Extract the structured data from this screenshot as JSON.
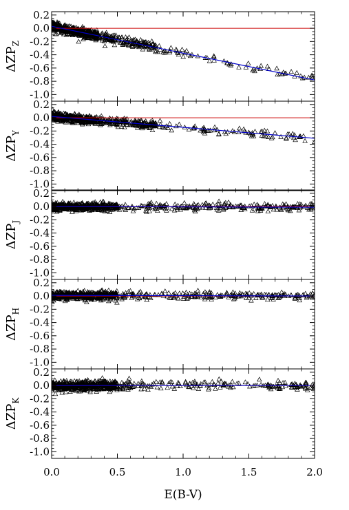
{
  "chart_data": [
    {
      "type": "scatter",
      "ylabel_main": "ΔZP",
      "ylabel_sub": "Z",
      "ylim": [
        -1.1,
        0.25
      ],
      "yticks": [
        "0.2",
        "0.0",
        "-0.2",
        "-0.4",
        "-0.6",
        "-0.8",
        "-1.0"
      ],
      "yticks_values": [
        0.2,
        0.0,
        -0.2,
        -0.4,
        -0.6,
        -0.8,
        -1.0
      ],
      "reference_line": {
        "y": 0.0,
        "color": "#cc0000"
      },
      "fit_line": {
        "x": [
          0.0,
          2.0
        ],
        "y": [
          0.03,
          -0.78
        ],
        "color": "#0000cc"
      },
      "scatter": {
        "slope": -0.405,
        "intercept": 0.03,
        "scatter": 0.035,
        "marker": "triangle-open"
      }
    },
    {
      "type": "scatter",
      "ylabel_main": "ΔZP",
      "ylabel_sub": "Y",
      "ylim": [
        -1.1,
        0.25
      ],
      "yticks": [
        "0.2",
        "0.0",
        "-0.2",
        "-0.4",
        "-0.6",
        "-0.8",
        "-1.0"
      ],
      "yticks_values": [
        0.2,
        0.0,
        -0.2,
        -0.4,
        -0.6,
        -0.8,
        -1.0
      ],
      "reference_line": {
        "y": 0.0,
        "color": "#cc0000"
      },
      "fit_line": {
        "x": [
          0.0,
          2.0
        ],
        "y": [
          0.02,
          -0.31
        ],
        "color": "#0000cc"
      },
      "scatter": {
        "slope": -0.165,
        "intercept": 0.02,
        "scatter": 0.03,
        "marker": "triangle-open"
      }
    },
    {
      "type": "scatter",
      "ylabel_main": "ΔZP",
      "ylabel_sub": "J",
      "ylim": [
        -1.1,
        0.25
      ],
      "yticks": [
        "0.2",
        "0.0",
        "-0.2",
        "-0.4",
        "-0.6",
        "-0.8",
        "-1.0"
      ],
      "yticks_values": [
        0.2,
        0.0,
        -0.2,
        -0.4,
        -0.6,
        -0.8,
        -1.0
      ],
      "reference_line": {
        "y": 0.0,
        "color": "#cc0000"
      },
      "fit_line": {
        "x": [
          0.0,
          2.0
        ],
        "y": [
          0.0,
          -0.01
        ],
        "color": "#0000cc"
      },
      "scatter": {
        "slope": -0.005,
        "intercept": 0.0,
        "scatter": 0.03,
        "marker": "triangle-open"
      }
    },
    {
      "type": "scatter",
      "ylabel_main": "ΔZP",
      "ylabel_sub": "H",
      "ylim": [
        -1.1,
        0.25
      ],
      "yticks": [
        "0.2",
        "0.0",
        "-0.2",
        "-0.4",
        "-0.6",
        "-0.8",
        "-1.0"
      ],
      "yticks_values": [
        0.2,
        0.0,
        -0.2,
        -0.4,
        -0.6,
        -0.8,
        -1.0
      ],
      "reference_line": {
        "y": 0.0,
        "color": "#cc0000"
      },
      "fit_line": {
        "x": [
          0.0,
          2.0
        ],
        "y": [
          0.01,
          0.0
        ],
        "color": "#0000cc"
      },
      "scatter": {
        "slope": -0.005,
        "intercept": 0.01,
        "scatter": 0.03,
        "marker": "triangle-open"
      }
    },
    {
      "type": "scatter",
      "ylabel_main": "ΔZP",
      "ylabel_sub": "K",
      "ylim": [
        -1.1,
        0.25
      ],
      "yticks": [
        "0.2",
        "0.0",
        "-0.2",
        "-0.4",
        "-0.6",
        "-0.8",
        "-1.0"
      ],
      "yticks_values": [
        0.2,
        0.0,
        -0.2,
        -0.4,
        -0.6,
        -0.8,
        -1.0
      ],
      "reference_line": {
        "y": 0.0,
        "color": "#cc0000"
      },
      "fit_line": {
        "x": [
          0.0,
          2.0
        ],
        "y": [
          0.0,
          0.0
        ],
        "color": "#0000cc"
      },
      "scatter": {
        "slope": 0.0,
        "intercept": 0.0,
        "scatter": 0.035,
        "marker": "triangle-open"
      }
    }
  ],
  "shared_x_axis": {
    "label": "E(B-V)",
    "xlim": [
      0.0,
      2.0
    ],
    "ticks": [
      "0.0",
      "0.5",
      "1.0",
      "1.5",
      "2.0"
    ],
    "ticks_values": [
      0.0,
      0.5,
      1.0,
      1.5,
      2.0
    ]
  }
}
